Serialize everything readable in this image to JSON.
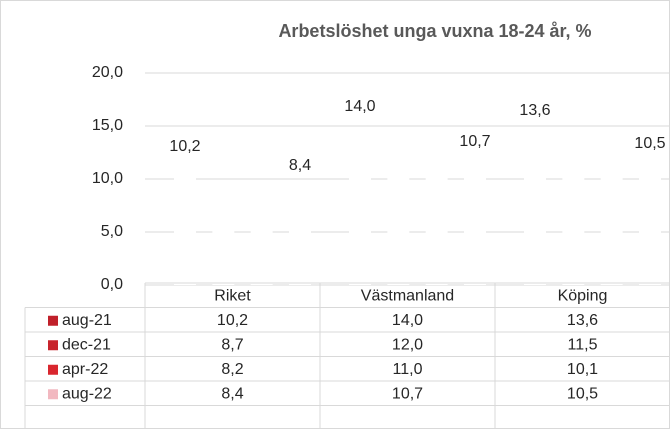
{
  "chart_data": {
    "type": "bar",
    "title": "Arbetslöshet unga vuxna 18-24 år, %",
    "categories": [
      "Riket",
      "Västmanland",
      "Köping"
    ],
    "series": [
      {
        "name": "aug-21",
        "color": "#c0202a",
        "values": [
          10.2,
          14.0,
          13.6
        ],
        "value_labels": [
          "10,2",
          "14,0",
          "13,6"
        ],
        "data_labels": true
      },
      {
        "name": "dec-21",
        "color": "#c8242c",
        "values": [
          8.7,
          12.0,
          11.5
        ],
        "value_labels": [
          "8,7",
          "12,0",
          "11,5"
        ],
        "data_labels": false
      },
      {
        "name": "apr-22",
        "color": "#d9262e",
        "values": [
          8.2,
          11.0,
          10.1
        ],
        "value_labels": [
          "8,2",
          "11,0",
          "10,1"
        ],
        "data_labels": false
      },
      {
        "name": "aug-22",
        "color": "#f2b8c0",
        "values": [
          8.4,
          10.7,
          10.5
        ],
        "value_labels": [
          "8,4",
          "10,7",
          "10,5"
        ],
        "data_labels": true
      }
    ],
    "ylim": [
      0,
      20
    ],
    "yticks": [
      {
        "value": 0,
        "label": "0,0"
      },
      {
        "value": 5,
        "label": "5,0"
      },
      {
        "value": 10,
        "label": "10,0"
      },
      {
        "value": 15,
        "label": "15,0"
      },
      {
        "value": 20,
        "label": "20,0"
      }
    ],
    "grid": true
  }
}
